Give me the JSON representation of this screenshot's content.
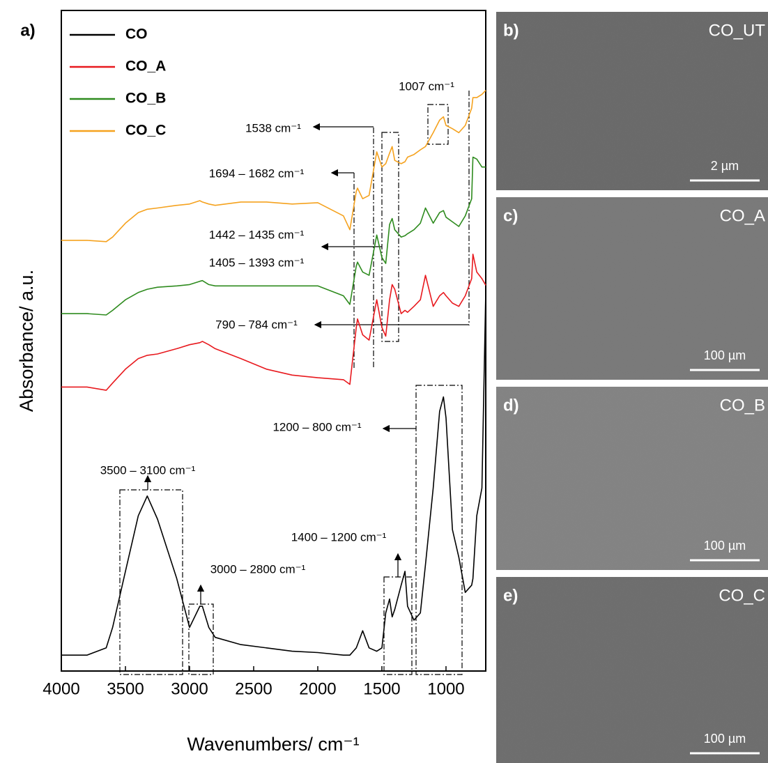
{
  "chart_data": {
    "type": "line",
    "panel_label": "a)",
    "xlabel": "Wavenumbers/ cm⁻¹",
    "ylabel": "Absorbance/ a.u.",
    "xlim": [
      4000,
      690
    ],
    "xticks": [
      4000,
      3500,
      3000,
      2500,
      2000,
      1500,
      1000
    ],
    "ylim": [
      0,
      100
    ],
    "legend": "top-left",
    "x": [
      4000,
      3800,
      3650,
      3600,
      3500,
      3400,
      3330,
      3250,
      3100,
      3000,
      2920,
      2900,
      2850,
      2800,
      2600,
      2400,
      2200,
      2000,
      1800,
      1750,
      1700,
      1690,
      1650,
      1600,
      1540,
      1500,
      1470,
      1440,
      1420,
      1400,
      1350,
      1320,
      1300,
      1250,
      1200,
      1160,
      1100,
      1050,
      1020,
      1000,
      950,
      900,
      850,
      800,
      790,
      760,
      720,
      690
    ],
    "series": [
      {
        "name": "CO",
        "color": "#000000",
        "values": [
          2.4,
          2.4,
          3.5,
          6.6,
          15.1,
          23.5,
          26.5,
          23.0,
          14.0,
          6.6,
          9.8,
          9.8,
          6.6,
          5.1,
          4.0,
          3.5,
          3.0,
          2.8,
          2.4,
          2.4,
          3.5,
          4.0,
          6.1,
          3.5,
          3.0,
          3.5,
          8.8,
          10.9,
          8.2,
          9.3,
          13.0,
          15.1,
          9.8,
          7.7,
          8.8,
          16.1,
          27.7,
          39.3,
          41.5,
          38.3,
          21.4,
          17.2,
          11.9,
          13.0,
          14.0,
          23.5,
          27.7,
          57.3
        ]
      },
      {
        "name": "CO_A",
        "color": "#e8191e",
        "values": [
          43.0,
          43.0,
          42.5,
          43.6,
          45.7,
          47.3,
          47.8,
          48.0,
          48.8,
          49.4,
          49.7,
          49.9,
          49.4,
          48.8,
          47.3,
          45.7,
          44.8,
          44.4,
          44.1,
          43.4,
          52.0,
          53.3,
          50.9,
          50.1,
          56.2,
          52.0,
          50.7,
          56.2,
          58.5,
          57.8,
          54.1,
          54.6,
          54.3,
          55.2,
          56.2,
          59.9,
          55.2,
          56.8,
          57.3,
          56.8,
          55.7,
          55.2,
          56.8,
          59.4,
          63.1,
          60.4,
          59.4,
          58.4
        ]
      },
      {
        "name": "CO_B",
        "color": "#2e8b1e",
        "values": [
          54.1,
          54.1,
          53.9,
          54.6,
          56.2,
          57.3,
          57.8,
          58.1,
          58.3,
          58.5,
          59.0,
          59.1,
          58.5,
          58.3,
          58.3,
          58.3,
          58.3,
          58.3,
          56.8,
          55.5,
          61.3,
          61.9,
          60.4,
          59.9,
          66.0,
          62.6,
          61.7,
          67.6,
          68.5,
          66.8,
          65.7,
          65.9,
          66.2,
          66.8,
          67.8,
          70.1,
          67.8,
          69.4,
          69.7,
          68.7,
          68.0,
          67.3,
          68.9,
          71.5,
          77.8,
          77.5,
          76.3,
          76.3
        ]
      },
      {
        "name": "CO_C",
        "color": "#f5a21e",
        "values": [
          65.2,
          65.2,
          65.0,
          65.7,
          67.8,
          69.4,
          69.9,
          70.1,
          70.5,
          70.7,
          71.2,
          71.0,
          70.7,
          70.5,
          71.0,
          71.0,
          70.7,
          70.9,
          68.9,
          66.8,
          72.6,
          73.1,
          71.5,
          72.0,
          78.6,
          76.3,
          76.8,
          78.4,
          79.4,
          77.3,
          76.8,
          77.1,
          77.8,
          78.2,
          78.9,
          79.4,
          81.5,
          83.4,
          83.9,
          82.6,
          82.1,
          81.5,
          82.6,
          85.2,
          86.8,
          86.8,
          87.3,
          87.9
        ]
      }
    ],
    "annotations": [
      "1007 cm⁻¹",
      "1538 cm⁻¹",
      "1694 – 1682 cm⁻¹",
      "1442 – 1435 cm⁻¹",
      "1405 – 1393 cm⁻¹",
      "790 – 784 cm⁻¹",
      "1200 – 800 cm⁻¹",
      "3500 – 3100 cm⁻¹",
      "3000 – 2800 cm⁻¹",
      "1400 – 1200 cm⁻¹"
    ]
  },
  "images": [
    {
      "label": "b)",
      "sample": "CO_UT",
      "scale": "2 µm"
    },
    {
      "label": "c)",
      "sample": "CO_A",
      "scale": "100 µm"
    },
    {
      "label": "d)",
      "sample": "CO_B",
      "scale": "100 µm"
    },
    {
      "label": "e)",
      "sample": "CO_C",
      "scale": "100 µm"
    }
  ]
}
